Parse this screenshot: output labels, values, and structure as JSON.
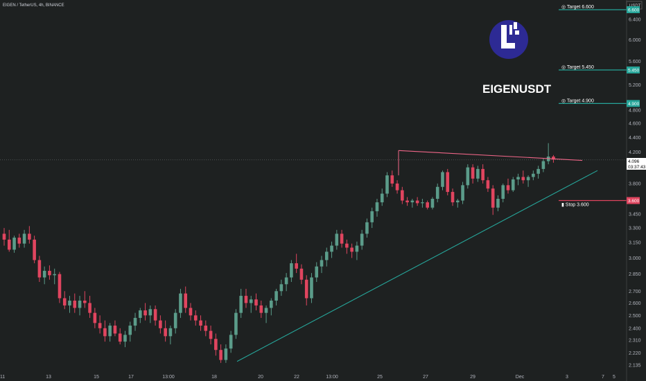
{
  "header": {
    "symbol_info": "EIGEN / TetherUS, 4h, BINANCE"
  },
  "overlay": {
    "title": "EIGENUSDT"
  },
  "axis": {
    "currency": "USDT"
  },
  "colors": {
    "bull": "#5b9c8a",
    "bear": "#e0455f",
    "teal": "#26a69a",
    "pink": "#f06688",
    "background": "#1e2121"
  },
  "levels": [
    {
      "kind": "target",
      "label": "Target 6.600",
      "tag": "6.600",
      "value": 6.6
    },
    {
      "kind": "target",
      "label": "Target 5.450",
      "tag": "5.450",
      "value": 5.45
    },
    {
      "kind": "target",
      "label": "Target 4.900",
      "tag": "4.900",
      "value": 4.9
    },
    {
      "kind": "stop",
      "label": "Stop 3.600",
      "tag": "3.600",
      "value": 3.6
    }
  ],
  "last_price": {
    "value": "4.096",
    "countdown": "03:37:43"
  },
  "chart_data": {
    "type": "candlestick",
    "y_scale": "log",
    "ylim": [
      2.1,
      6.75
    ],
    "x_ticks": [
      "11",
      "13",
      "15",
      "17",
      "13:00",
      "18",
      "20",
      "22",
      "13:00",
      "25",
      "27",
      "29",
      "Dec",
      "3",
      "5",
      "7"
    ],
    "y_ticks": [
      "6.400",
      "6.000",
      "5.600",
      "5.200",
      "4.800",
      "4.600",
      "4.400",
      "4.200",
      "3.800",
      "3.450",
      "3.300",
      "3.150",
      "3.000",
      "2.850",
      "2.700",
      "2.600",
      "2.500",
      "2.400",
      "2.310",
      "2.220",
      "2.135"
    ],
    "candles": [
      [
        3.24,
        3.3,
        3.12,
        3.18
      ],
      [
        3.18,
        3.28,
        3.06,
        3.08
      ],
      [
        3.08,
        3.22,
        3.05,
        3.2
      ],
      [
        3.2,
        3.24,
        3.1,
        3.14
      ],
      [
        3.14,
        3.28,
        3.1,
        3.24
      ],
      [
        3.24,
        3.32,
        3.14,
        3.18
      ],
      [
        3.18,
        3.22,
        2.95,
        2.98
      ],
      [
        2.98,
        3.02,
        2.78,
        2.82
      ],
      [
        2.82,
        2.92,
        2.76,
        2.88
      ],
      [
        2.88,
        2.93,
        2.8,
        2.84
      ],
      [
        2.84,
        2.9,
        2.76,
        2.85
      ],
      [
        2.85,
        2.87,
        2.6,
        2.64
      ],
      [
        2.64,
        2.7,
        2.55,
        2.58
      ],
      [
        2.58,
        2.66,
        2.52,
        2.62
      ],
      [
        2.62,
        2.68,
        2.52,
        2.56
      ],
      [
        2.56,
        2.66,
        2.5,
        2.62
      ],
      [
        2.62,
        2.7,
        2.56,
        2.6
      ],
      [
        2.6,
        2.66,
        2.48,
        2.52
      ],
      [
        2.52,
        2.56,
        2.4,
        2.44
      ],
      [
        2.44,
        2.5,
        2.36,
        2.4
      ],
      [
        2.4,
        2.46,
        2.3,
        2.34
      ],
      [
        2.34,
        2.44,
        2.3,
        2.42
      ],
      [
        2.42,
        2.46,
        2.34,
        2.36
      ],
      [
        2.36,
        2.4,
        2.28,
        2.3
      ],
      [
        2.3,
        2.38,
        2.26,
        2.35
      ],
      [
        2.35,
        2.45,
        2.3,
        2.42
      ],
      [
        2.42,
        2.52,
        2.38,
        2.48
      ],
      [
        2.48,
        2.56,
        2.44,
        2.54
      ],
      [
        2.54,
        2.6,
        2.46,
        2.5
      ],
      [
        2.5,
        2.58,
        2.44,
        2.55
      ],
      [
        2.55,
        2.58,
        2.42,
        2.46
      ],
      [
        2.46,
        2.5,
        2.36,
        2.4
      ],
      [
        2.4,
        2.46,
        2.3,
        2.34
      ],
      [
        2.34,
        2.42,
        2.28,
        2.4
      ],
      [
        2.4,
        2.55,
        2.36,
        2.52
      ],
      [
        2.52,
        2.72,
        2.48,
        2.68
      ],
      [
        2.68,
        2.74,
        2.52,
        2.56
      ],
      [
        2.56,
        2.6,
        2.46,
        2.5
      ],
      [
        2.5,
        2.54,
        2.42,
        2.46
      ],
      [
        2.46,
        2.5,
        2.38,
        2.42
      ],
      [
        2.42,
        2.46,
        2.34,
        2.38
      ],
      [
        2.38,
        2.42,
        2.28,
        2.32
      ],
      [
        2.32,
        2.36,
        2.2,
        2.24
      ],
      [
        2.24,
        2.28,
        2.15,
        2.17
      ],
      [
        2.17,
        2.28,
        2.15,
        2.25
      ],
      [
        2.25,
        2.38,
        2.22,
        2.35
      ],
      [
        2.35,
        2.55,
        2.32,
        2.52
      ],
      [
        2.52,
        2.72,
        2.48,
        2.66
      ],
      [
        2.66,
        2.72,
        2.56,
        2.6
      ],
      [
        2.6,
        2.66,
        2.52,
        2.63
      ],
      [
        2.63,
        2.68,
        2.54,
        2.58
      ],
      [
        2.58,
        2.62,
        2.48,
        2.52
      ],
      [
        2.52,
        2.58,
        2.44,
        2.56
      ],
      [
        2.56,
        2.64,
        2.5,
        2.62
      ],
      [
        2.62,
        2.72,
        2.58,
        2.7
      ],
      [
        2.7,
        2.8,
        2.66,
        2.76
      ],
      [
        2.76,
        2.86,
        2.7,
        2.82
      ],
      [
        2.82,
        2.98,
        2.78,
        2.95
      ],
      [
        2.95,
        3.04,
        2.86,
        2.9
      ],
      [
        2.9,
        2.94,
        2.76,
        2.8
      ],
      [
        2.8,
        2.84,
        2.58,
        2.64
      ],
      [
        2.64,
        2.86,
        2.6,
        2.82
      ],
      [
        2.82,
        2.96,
        2.78,
        2.92
      ],
      [
        2.92,
        3.02,
        2.86,
        2.98
      ],
      [
        2.98,
        3.1,
        2.92,
        3.06
      ],
      [
        3.06,
        3.16,
        3.0,
        3.12
      ],
      [
        3.12,
        3.28,
        3.08,
        3.24
      ],
      [
        3.24,
        3.28,
        3.1,
        3.14
      ],
      [
        3.14,
        3.18,
        3.04,
        3.1
      ],
      [
        3.1,
        3.14,
        3.0,
        3.06
      ],
      [
        3.06,
        3.16,
        2.98,
        3.12
      ],
      [
        3.12,
        3.28,
        3.08,
        3.24
      ],
      [
        3.24,
        3.4,
        3.2,
        3.36
      ],
      [
        3.36,
        3.52,
        3.3,
        3.48
      ],
      [
        3.48,
        3.62,
        3.42,
        3.58
      ],
      [
        3.58,
        3.74,
        3.54,
        3.68
      ],
      [
        3.68,
        3.94,
        3.64,
        3.9
      ],
      [
        3.9,
        3.96,
        3.76,
        3.8
      ],
      [
        3.8,
        3.84,
        3.68,
        3.72
      ],
      [
        3.72,
        3.76,
        3.56,
        3.6
      ],
      [
        3.6,
        3.64,
        3.54,
        3.58
      ],
      [
        3.58,
        3.62,
        3.52,
        3.6
      ],
      [
        3.6,
        3.64,
        3.54,
        3.57
      ],
      [
        3.57,
        3.62,
        3.52,
        3.58
      ],
      [
        3.58,
        3.6,
        3.5,
        3.52
      ],
      [
        3.52,
        3.64,
        3.5,
        3.62
      ],
      [
        3.62,
        3.8,
        3.58,
        3.76
      ],
      [
        3.76,
        3.96,
        3.72,
        3.94
      ],
      [
        3.94,
        3.98,
        3.66,
        3.7
      ],
      [
        3.7,
        3.74,
        3.54,
        3.58
      ],
      [
        3.58,
        3.62,
        3.52,
        3.6
      ],
      [
        3.6,
        3.82,
        3.56,
        3.78
      ],
      [
        3.78,
        4.04,
        3.74,
        4.0
      ],
      [
        4.0,
        4.04,
        3.8,
        3.86
      ],
      [
        3.86,
        4.02,
        3.82,
        3.98
      ],
      [
        3.98,
        4.04,
        3.8,
        3.84
      ],
      [
        3.84,
        3.88,
        3.7,
        3.74
      ],
      [
        3.74,
        3.78,
        3.44,
        3.52
      ],
      [
        3.52,
        3.66,
        3.48,
        3.62
      ],
      [
        3.62,
        3.8,
        3.58,
        3.78
      ],
      [
        3.78,
        3.86,
        3.68,
        3.72
      ],
      [
        3.72,
        3.88,
        3.7,
        3.85
      ],
      [
        3.85,
        3.92,
        3.78,
        3.88
      ],
      [
        3.88,
        3.96,
        3.8,
        3.84
      ],
      [
        3.84,
        3.9,
        3.76,
        3.88
      ],
      [
        3.88,
        3.96,
        3.84,
        3.92
      ],
      [
        3.92,
        4.02,
        3.86,
        3.98
      ],
      [
        3.98,
        4.12,
        3.94,
        4.08
      ],
      [
        4.08,
        4.32,
        4.04,
        4.14
      ],
      [
        4.14,
        4.16,
        4.06,
        4.1
      ]
    ]
  }
}
